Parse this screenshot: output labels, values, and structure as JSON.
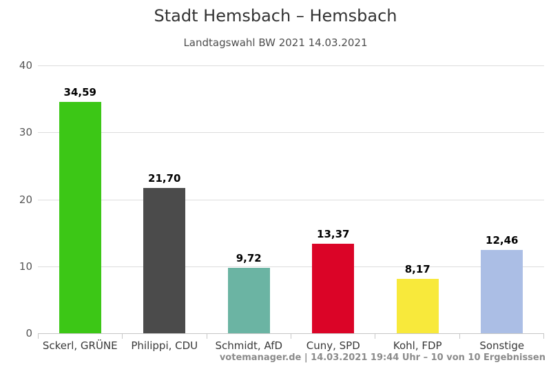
{
  "header": {
    "title": "Stadt Hemsbach – Hemsbach",
    "subtitle": "Landtagswahl BW 2021 14.03.2021"
  },
  "footer": {
    "credit": "votemanager.de | 14.03.2021 19:44 Uhr – 10 von 10 Ergebnissen"
  },
  "chart_data": {
    "type": "bar",
    "title": "Stadt Hemsbach – Hemsbach",
    "subtitle": "Landtagswahl BW 2021 14.03.2021",
    "categories": [
      "Sckerl, GRÜNE",
      "Philippi, CDU",
      "Schmidt, AfD",
      "Cuny, SPD",
      "Kohl, FDP",
      "Sonstige"
    ],
    "values": [
      34.59,
      21.7,
      9.72,
      13.37,
      8.17,
      12.46
    ],
    "value_labels": [
      "34,59",
      "21,70",
      "9,72",
      "13,37",
      "8,17",
      "12,46"
    ],
    "bar_colors": [
      "#3cc716",
      "#4b4b4b",
      "#6bb4a3",
      "#db0427",
      "#f8e93b",
      "#abbee5"
    ],
    "xlabel": "",
    "ylabel": "",
    "ylim": [
      0,
      40
    ],
    "y_ticks": [
      0,
      10,
      20,
      30,
      40
    ],
    "grid": "horizontal",
    "legend": "none",
    "axis_color": "#c6c6c6",
    "grid_color": "#dddddd"
  }
}
